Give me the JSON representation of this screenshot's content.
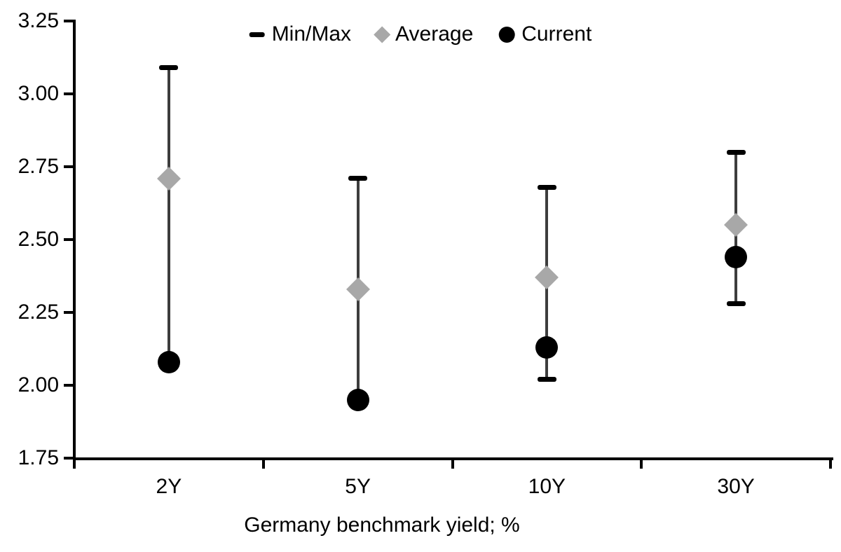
{
  "page": {
    "background": "#ffffff"
  },
  "chart_data": {
    "type": "scatter",
    "subtype": "min-max-range",
    "title": "",
    "xlabel": "Germany benchmark yield; %",
    "ylabel": "",
    "categories": [
      "2Y",
      "5Y",
      "10Y",
      "30Y"
    ],
    "series": [
      {
        "name": "Min/Max",
        "marker": "dash",
        "role": "range",
        "min": [
          2.08,
          1.95,
          2.02,
          2.28
        ],
        "max": [
          3.09,
          2.71,
          2.68,
          2.8
        ]
      },
      {
        "name": "Average",
        "marker": "diamond",
        "role": "points",
        "values": [
          2.71,
          2.33,
          2.37,
          2.55
        ]
      },
      {
        "name": "Current",
        "marker": "circle",
        "role": "points",
        "values": [
          2.08,
          1.95,
          2.13,
          2.44
        ]
      }
    ],
    "ylim": [
      1.75,
      3.25
    ],
    "ytick_step": 0.25,
    "ytick_labels": [
      "3.25",
      "3.00",
      "2.75",
      "2.50",
      "2.25",
      "2.00",
      "1.75"
    ],
    "grid": false,
    "legend_position": "top-center",
    "colors": {
      "axis": "#000000",
      "text": "#000000",
      "range_line": "#3d3d3d",
      "cap": "#000000",
      "average_fill": "#a8a8a8",
      "current_fill": "#000000",
      "background": "#ffffff"
    }
  }
}
